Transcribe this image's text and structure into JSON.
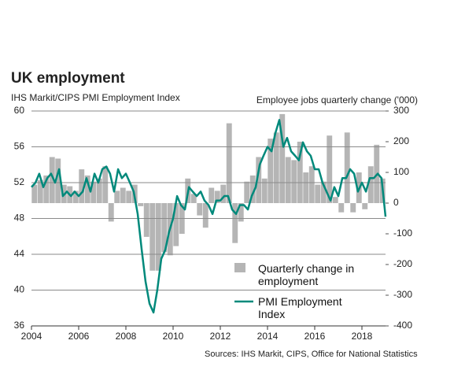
{
  "chart_data": {
    "type": "bar-line",
    "title": "UK employment",
    "y_label": "IHS Markit/CIPS PMI Employment Index",
    "y2_label": "Employee jobs quarterly change ('000)",
    "source": "Sources: IHS Markit, CIPS, Office for National Statistics",
    "xlim": [
      2004,
      2019
    ],
    "xticks": [
      2004,
      2006,
      2008,
      2010,
      2012,
      2014,
      2016,
      2018
    ],
    "ylim": [
      36,
      60
    ],
    "yticks": [
      36,
      40,
      44,
      48,
      52,
      56,
      60
    ],
    "y2lim": [
      -400,
      300
    ],
    "y2ticks": [
      -400,
      -300,
      -200,
      -100,
      0,
      100,
      200,
      300
    ],
    "grid": true,
    "series": [
      {
        "name": "Quarterly change in employment",
        "type": "bar",
        "axis": "y2",
        "color": "#b5b5b5",
        "x": [
          2004.125,
          2004.375,
          2004.625,
          2004.875,
          2005.125,
          2005.375,
          2005.625,
          2005.875,
          2006.125,
          2006.375,
          2006.625,
          2006.875,
          2007.125,
          2007.375,
          2007.625,
          2007.875,
          2008.125,
          2008.375,
          2008.625,
          2008.875,
          2009.125,
          2009.375,
          2009.625,
          2009.875,
          2010.125,
          2010.375,
          2010.625,
          2010.875,
          2011.125,
          2011.375,
          2011.625,
          2011.875,
          2012.125,
          2012.375,
          2012.625,
          2012.875,
          2013.125,
          2013.375,
          2013.625,
          2013.875,
          2014.125,
          2014.375,
          2014.625,
          2014.875,
          2015.125,
          2015.375,
          2015.625,
          2015.875,
          2016.125,
          2016.375,
          2016.625,
          2016.875,
          2017.125,
          2017.375,
          2017.625,
          2017.875,
          2018.125,
          2018.375,
          2018.625,
          2018.875
        ],
        "values": [
          60,
          75,
          90,
          150,
          145,
          60,
          55,
          40,
          110,
          90,
          70,
          80,
          120,
          -60,
          40,
          50,
          40,
          60,
          -10,
          -110,
          -220,
          -220,
          -160,
          -170,
          -140,
          -100,
          80,
          30,
          -40,
          -80,
          50,
          40,
          60,
          260,
          -130,
          -60,
          70,
          90,
          150,
          80,
          210,
          230,
          290,
          150,
          140,
          200,
          100,
          120,
          60,
          70,
          220,
          20,
          -30,
          230,
          -30,
          100,
          -20,
          120,
          190,
          80
        ]
      },
      {
        "name": "PMI Employment Index",
        "type": "line",
        "axis": "y",
        "color": "#00897b",
        "x": [
          2004,
          2004.17,
          2004.33,
          2004.5,
          2004.67,
          2004.83,
          2005,
          2005.17,
          2005.33,
          2005.5,
          2005.67,
          2005.83,
          2006,
          2006.17,
          2006.33,
          2006.5,
          2006.67,
          2006.83,
          2007,
          2007.17,
          2007.33,
          2007.5,
          2007.67,
          2007.83,
          2008,
          2008.17,
          2008.33,
          2008.5,
          2008.67,
          2008.83,
          2009,
          2009.17,
          2009.33,
          2009.5,
          2009.67,
          2009.83,
          2010,
          2010.17,
          2010.33,
          2010.5,
          2010.67,
          2010.83,
          2011,
          2011.17,
          2011.33,
          2011.5,
          2011.67,
          2011.83,
          2012,
          2012.17,
          2012.33,
          2012.5,
          2012.67,
          2012.83,
          2013,
          2013.17,
          2013.33,
          2013.5,
          2013.67,
          2013.83,
          2014,
          2014.17,
          2014.33,
          2014.5,
          2014.67,
          2014.83,
          2015,
          2015.17,
          2015.33,
          2015.5,
          2015.67,
          2015.83,
          2016,
          2016.17,
          2016.33,
          2016.5,
          2016.67,
          2016.83,
          2017,
          2017.17,
          2017.33,
          2017.5,
          2017.67,
          2017.83,
          2018,
          2018.17,
          2018.33,
          2018.5,
          2018.67,
          2018.83,
          2019
        ],
        "values": [
          51.5,
          52,
          53,
          51.5,
          52.5,
          53,
          52,
          53.5,
          50.5,
          51,
          50.5,
          51,
          50.5,
          51,
          52.5,
          51,
          53,
          52,
          53.5,
          53.8,
          53,
          51,
          53.5,
          52.5,
          53,
          52,
          51,
          48.5,
          44.5,
          41,
          38.5,
          37.5,
          40,
          43.5,
          44.5,
          46.5,
          48,
          50.5,
          49.5,
          49,
          51.5,
          51,
          50.5,
          51,
          50,
          49.5,
          48.5,
          50,
          50,
          50.5,
          50.5,
          49,
          48.5,
          49.5,
          49.5,
          49,
          50.5,
          51.5,
          54,
          55,
          56,
          55.5,
          57.5,
          59,
          56,
          57,
          55.5,
          55,
          54.5,
          56.5,
          55.5,
          55,
          53.5,
          53.5,
          52,
          51,
          50,
          51.5,
          50.5,
          52.5,
          52.5,
          53.5,
          53,
          51,
          52,
          51,
          52.5,
          52.5,
          53,
          52.5,
          48.2
        ]
      }
    ]
  }
}
